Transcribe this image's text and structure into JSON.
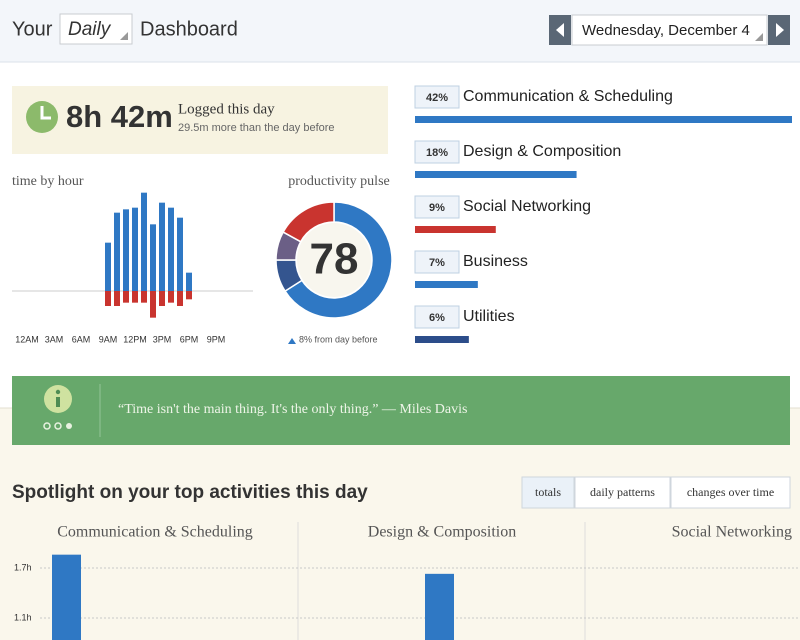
{
  "header": {
    "prefix": "Your",
    "period": "Daily",
    "suffix": "Dashboard",
    "date": "Wednesday, December 4"
  },
  "logged": {
    "time": "8h 42m",
    "label": "Logged this day",
    "comparison": "29.5m more than the day before"
  },
  "time_by_hour": {
    "title": "time by hour",
    "hour_labels": [
      "12AM",
      "3AM",
      "6AM",
      "9AM",
      "12PM",
      "3PM",
      "6PM",
      "9PM"
    ],
    "productive": [
      0,
      0,
      0,
      0,
      0,
      0,
      0,
      0,
      0,
      29,
      47,
      49,
      50,
      59,
      40,
      53,
      50,
      44,
      11,
      0,
      0,
      0,
      0,
      0
    ],
    "distracting": [
      0,
      0,
      0,
      0,
      0,
      0,
      0,
      0,
      0,
      9,
      9,
      7,
      7,
      7,
      16,
      9,
      7,
      9,
      5,
      0,
      0,
      0,
      0,
      0
    ]
  },
  "pulse": {
    "title": "productivity pulse",
    "score": 78,
    "change": "8% from day before",
    "segments": [
      {
        "color": "#2f78c4",
        "value": 66
      },
      {
        "color": "#34558f",
        "value": 9
      },
      {
        "color": "#6b5f86",
        "value": 8
      },
      {
        "color": "#c9342f",
        "value": 17
      }
    ]
  },
  "categories": {
    "names": [
      "Communication & Scheduling",
      "Design & Composition",
      "Social Networking",
      "Business",
      "Utilities"
    ],
    "values": [
      42,
      18,
      9,
      7,
      6
    ],
    "value_labels": [
      "42%",
      "18%",
      "9%",
      "7%",
      "6%"
    ],
    "colors": [
      "#2f78c4",
      "#2f78c4",
      "#c9342f",
      "#2f78c4",
      "#2c4d8a"
    ]
  },
  "quote": {
    "text": "“Time isn't the main thing. It's the only thing.” — Miles Davis"
  },
  "spotlight": {
    "title": "Spotlight on your top activities this day",
    "tabs": [
      "totals",
      "daily patterns",
      "changes over time"
    ],
    "active_tab": 0,
    "columns": [
      "Communication & Scheduling",
      "Design & Composition",
      "Social Networking"
    ],
    "values": [
      1.86,
      1.63,
      null
    ],
    "yticks": [
      {
        "value": 1.7,
        "label": "1.7h"
      },
      {
        "value": 1.1,
        "label": "1.1h"
      }
    ],
    "color": "#2f78c4"
  }
}
